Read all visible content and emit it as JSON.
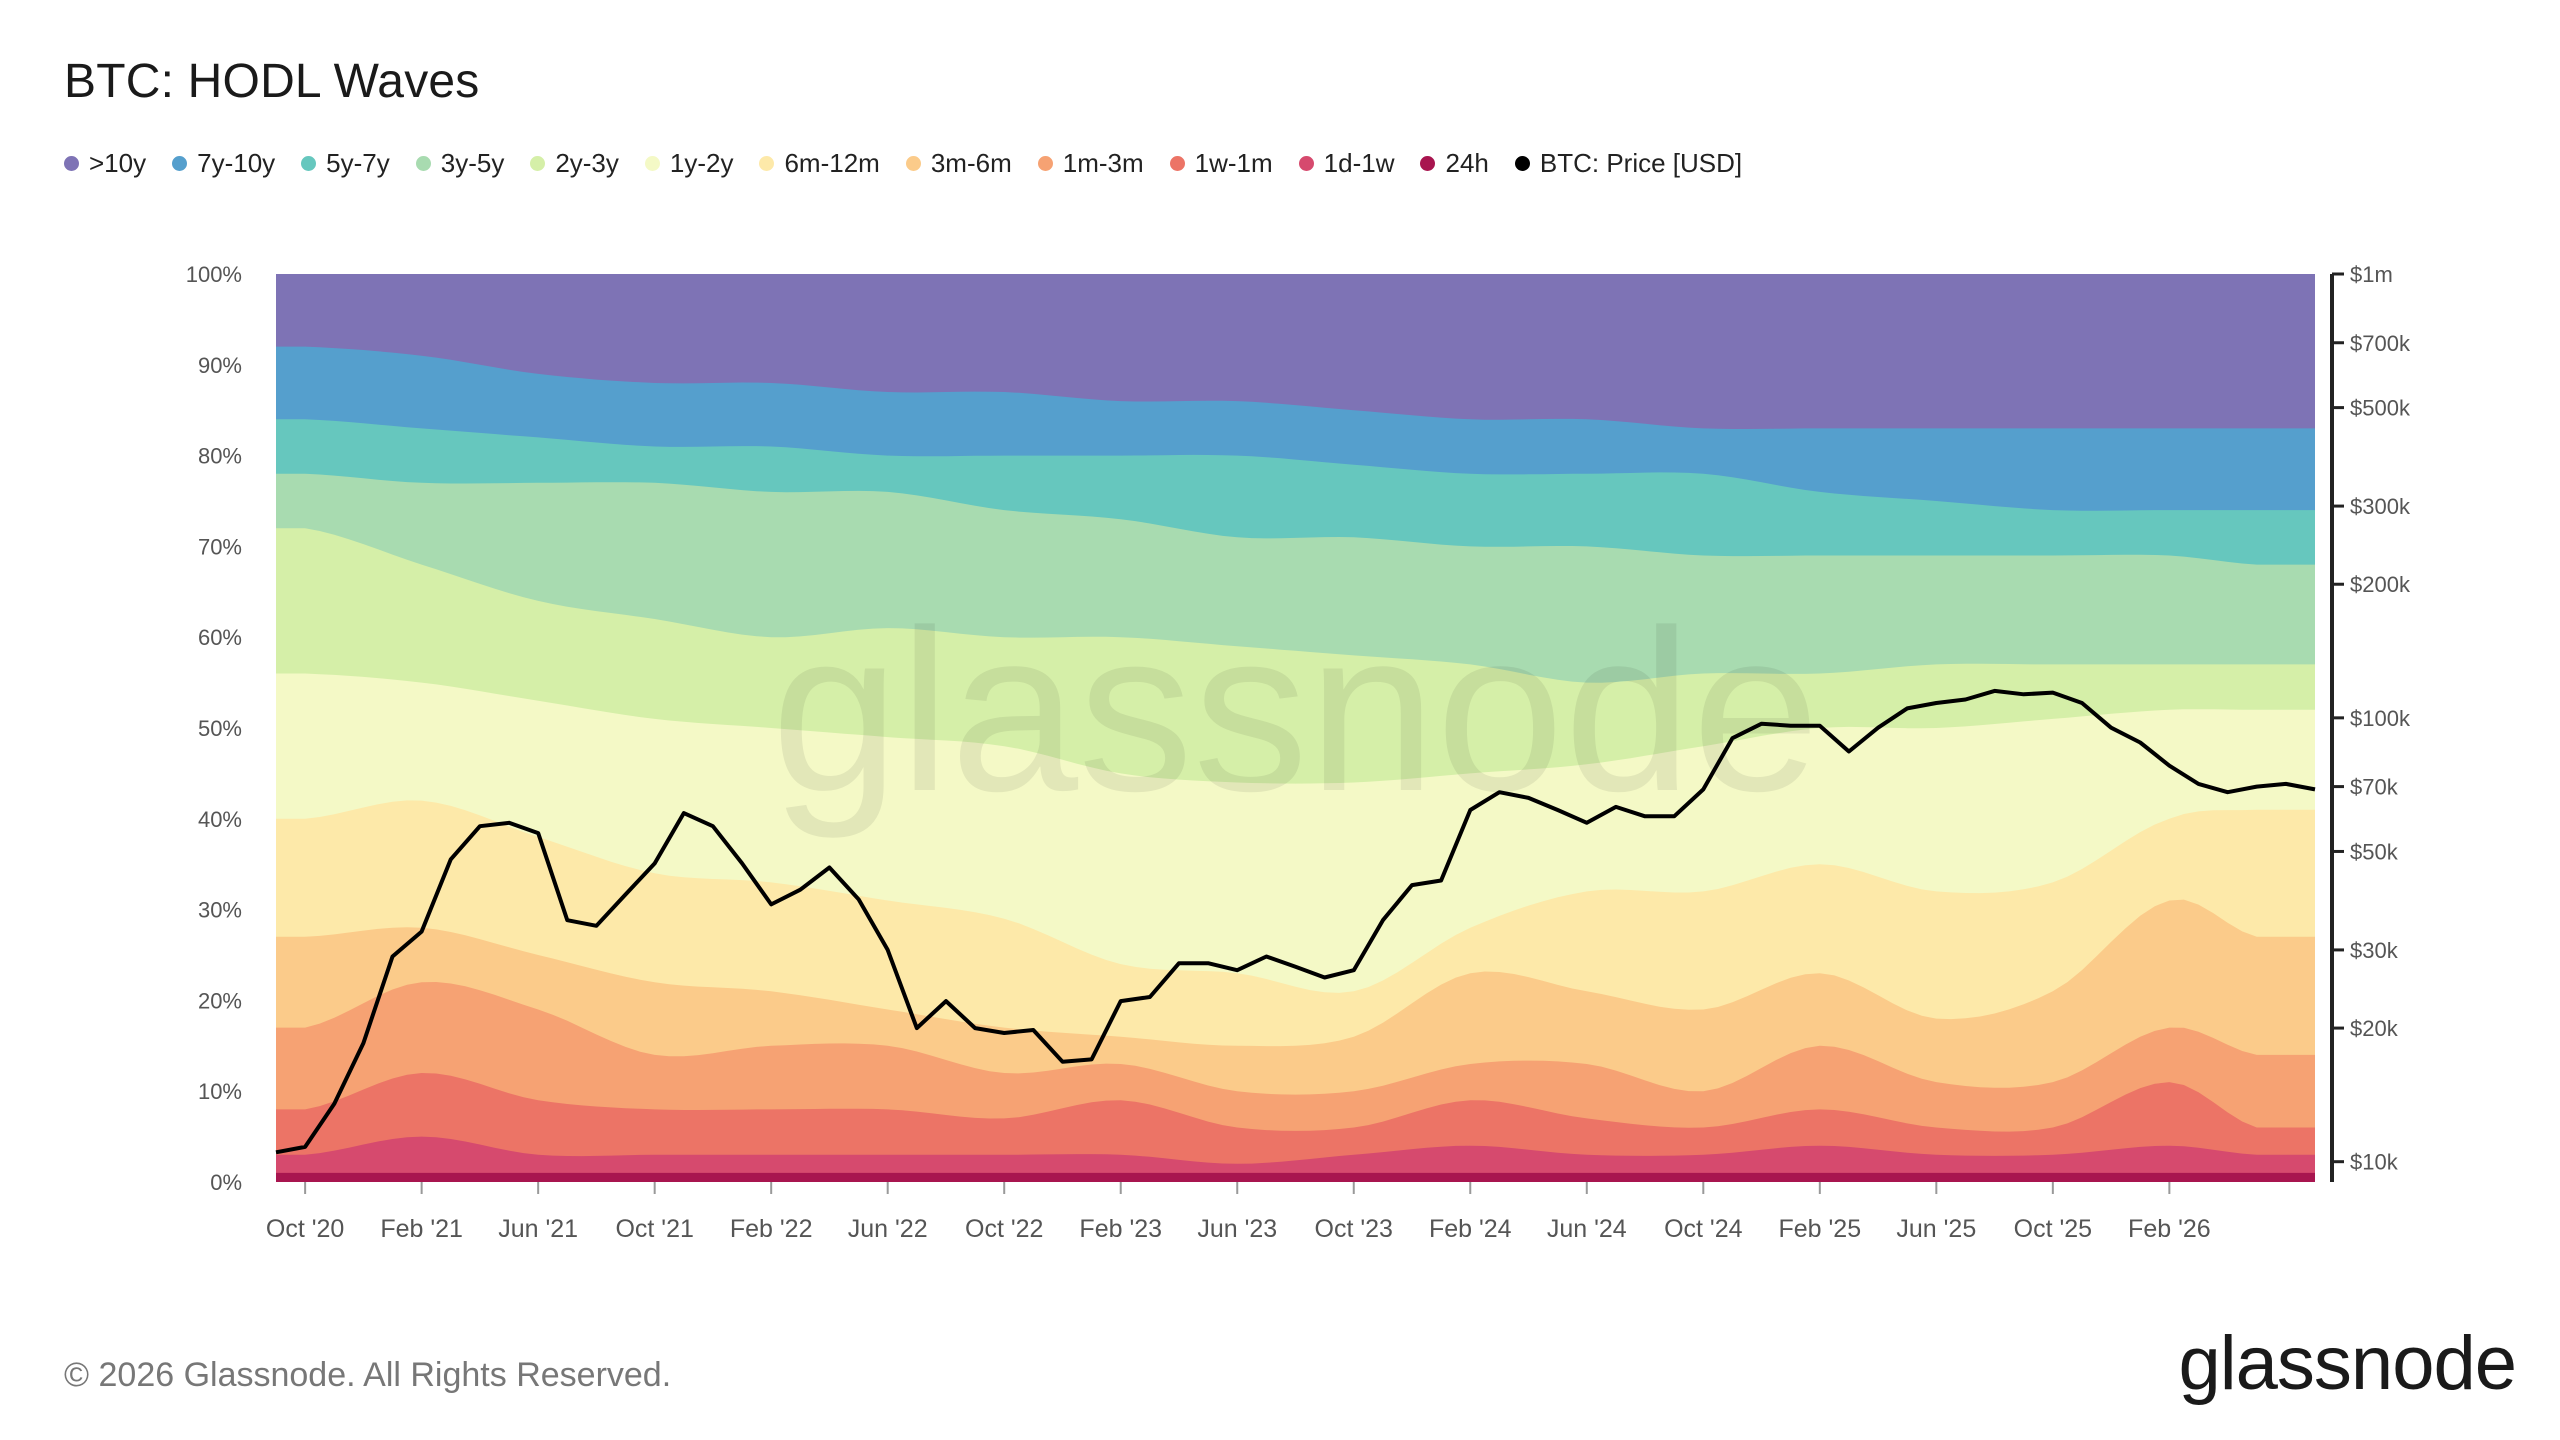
{
  "title": "BTC: HODL Waves",
  "legend": [
    {
      "label": ">10y",
      "color": "#7e73b5"
    },
    {
      "label": "7y-10y",
      "color": "#559fcd"
    },
    {
      "label": "5y-7y",
      "color": "#66c7be"
    },
    {
      "label": "3y-5y",
      "color": "#a8dbb0"
    },
    {
      "label": "2y-3y",
      "color": "#d5efa8"
    },
    {
      "label": "1y-2y",
      "color": "#f4f9c6"
    },
    {
      "label": "6m-12m",
      "color": "#fde9a9"
    },
    {
      "label": "3m-6m",
      "color": "#fbcb8a"
    },
    {
      "label": "1m-3m",
      "color": "#f6a273"
    },
    {
      "label": "1w-1m",
      "color": "#ec7466"
    },
    {
      "label": "1d-1w",
      "color": "#d64a6e"
    },
    {
      "label": "24h",
      "color": "#a8154f"
    },
    {
      "label": "BTC: Price [USD]",
      "color": "#000000"
    }
  ],
  "watermark": "glassnode",
  "footer": "© 2026 Glassnode. All Rights Reserved.",
  "brand": "glassnode",
  "chart_data": {
    "type": "area",
    "stacked": true,
    "x_ticks": [
      "Oct '20",
      "Feb '21",
      "Jun '21",
      "Oct '21",
      "Feb '22",
      "Jun '22",
      "Oct '22",
      "Feb '23",
      "Jun '23",
      "Oct '23",
      "Feb '24",
      "Jun '24",
      "Oct '24",
      "Feb '25",
      "Jun '25",
      "Oct '25",
      "Feb '26"
    ],
    "y_left_ticks": [
      "0%",
      "10%",
      "20%",
      "30%",
      "40%",
      "50%",
      "60%",
      "70%",
      "80%",
      "90%",
      "100%"
    ],
    "y_left_range": [
      0,
      100
    ],
    "y_right_ticks": [
      {
        "label": "$10k",
        "value": 10000
      },
      {
        "label": "$20k",
        "value": 20000
      },
      {
        "label": "$30k",
        "value": 30000
      },
      {
        "label": "$50k",
        "value": 50000
      },
      {
        "label": "$70k",
        "value": 70000
      },
      {
        "label": "$100k",
        "value": 100000
      },
      {
        "label": "$200k",
        "value": 200000
      },
      {
        "label": "$300k",
        "value": 300000
      },
      {
        "label": "$500k",
        "value": 500000
      },
      {
        "label": "$700k",
        "value": 700000
      },
      {
        "label": "$1m",
        "value": 1000000
      }
    ],
    "y_right_range": [
      9000,
      1000000
    ],
    "y_right_scale": "log",
    "x_months": [
      0,
      4,
      8,
      12,
      16,
      20,
      24,
      28,
      32,
      36,
      40,
      44,
      48,
      52,
      56,
      60,
      64,
      67
    ],
    "x_start_month": -1,
    "x_end_month": 69,
    "x_tick_months": [
      0,
      4,
      8,
      12,
      16,
      20,
      24,
      28,
      32,
      36,
      40,
      44,
      48,
      52,
      56,
      60,
      64
    ],
    "cumulative_boundaries": [
      {
        "band": "24h",
        "values": [
          1,
          1,
          1,
          1,
          1,
          1,
          1,
          1,
          1,
          1,
          1,
          1,
          1,
          1,
          1,
          1,
          1,
          1
        ]
      },
      {
        "band": "1d-1w",
        "values": [
          3,
          5,
          3,
          3,
          3,
          3,
          3,
          3,
          2,
          3,
          4,
          3,
          3,
          4,
          3,
          3,
          4,
          3
        ]
      },
      {
        "band": "1w-1m",
        "values": [
          8,
          12,
          9,
          8,
          8,
          8,
          7,
          9,
          6,
          6,
          9,
          7,
          6,
          8,
          6,
          6,
          11,
          6
        ]
      },
      {
        "band": "1m-3m",
        "values": [
          17,
          22,
          19,
          14,
          15,
          15,
          12,
          13,
          10,
          10,
          13,
          13,
          10,
          15,
          11,
          11,
          17,
          14
        ]
      },
      {
        "band": "3m-6m",
        "values": [
          27,
          28,
          25,
          22,
          21,
          19,
          17,
          16,
          15,
          16,
          23,
          21,
          19,
          23,
          18,
          21,
          31,
          27
        ]
      },
      {
        "band": "6m-12m",
        "values": [
          40,
          42,
          38,
          34,
          33,
          31,
          29,
          24,
          23,
          21,
          28,
          32,
          32,
          35,
          32,
          33,
          40,
          41
        ]
      },
      {
        "band": "1y-2y",
        "values": [
          56,
          55,
          53,
          51,
          50,
          49,
          48,
          45,
          44,
          44,
          45,
          46,
          48,
          50,
          50,
          51,
          52,
          52
        ]
      },
      {
        "band": "2y-3y",
        "values": [
          72,
          68,
          64,
          62,
          60,
          61,
          60,
          60,
          59,
          58,
          57,
          55,
          56,
          56,
          57,
          57,
          57,
          57
        ]
      },
      {
        "band": "3y-5y",
        "values": [
          78,
          77,
          77,
          77,
          76,
          76,
          74,
          73,
          71,
          71,
          70,
          70,
          69,
          69,
          69,
          69,
          69,
          68
        ]
      },
      {
        "band": "5y-7y",
        "values": [
          84,
          83,
          82,
          81,
          81,
          80,
          80,
          80,
          80,
          79,
          78,
          78,
          78,
          76,
          75,
          74,
          74,
          74
        ]
      },
      {
        "band": "7y-10y",
        "values": [
          92,
          91,
          89,
          88,
          88,
          87,
          87,
          86,
          86,
          85,
          84,
          84,
          83,
          83,
          83,
          83,
          83,
          83
        ]
      },
      {
        "band": ">10y",
        "values": [
          100,
          100,
          100,
          100,
          100,
          100,
          100,
          100,
          100,
          100,
          100,
          100,
          100,
          100,
          100,
          100,
          100,
          100
        ]
      }
    ],
    "price_usd": {
      "x_months": [
        -1,
        0,
        1,
        2,
        3,
        4,
        5,
        6,
        7,
        8,
        9,
        10,
        11,
        12,
        13,
        14,
        15,
        16,
        17,
        18,
        19,
        20,
        21,
        22,
        23,
        24,
        25,
        26,
        27,
        28,
        29,
        30,
        31,
        32,
        33,
        34,
        35,
        36,
        37,
        38,
        39,
        40,
        41,
        42,
        43,
        44,
        45,
        46,
        47,
        48,
        49,
        50,
        51,
        52,
        53,
        54,
        55,
        56,
        57,
        58,
        59,
        60,
        61,
        62,
        63,
        64,
        65,
        66,
        67,
        68,
        69
      ],
      "values": [
        10500,
        10800,
        13500,
        18500,
        29000,
        33000,
        48000,
        57000,
        58000,
        55000,
        35000,
        34000,
        40000,
        47000,
        61000,
        57000,
        47000,
        38000,
        41000,
        46000,
        39000,
        30000,
        20000,
        23000,
        20000,
        19500,
        19800,
        16800,
        17000,
        23000,
        23500,
        28000,
        28000,
        27000,
        29000,
        27500,
        26000,
        27000,
        35000,
        42000,
        43000,
        62000,
        68000,
        66000,
        62000,
        58000,
        63000,
        60000,
        60000,
        69000,
        90000,
        97000,
        96000,
        96000,
        84000,
        95000,
        105000,
        108000,
        110000,
        115000,
        113000,
        114000,
        108000,
        95000,
        88000,
        78000,
        71000,
        68000,
        70000,
        71000,
        69000
      ]
    }
  }
}
